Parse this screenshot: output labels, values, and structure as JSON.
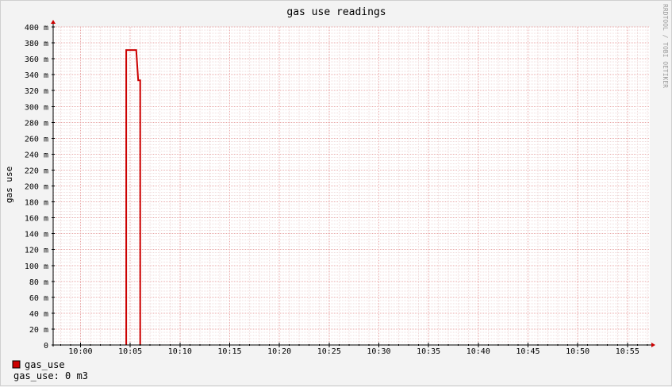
{
  "chart_data": {
    "type": "line",
    "title": "gas use readings",
    "ylabel": "gas use",
    "xlabel": "",
    "watermark": "RRDTOOL / TOBI OETIKER",
    "ylim": [
      0,
      400
    ],
    "xlim_minutes": [
      -2.75,
      57.25
    ],
    "yticks": [
      0,
      20,
      40,
      60,
      80,
      100,
      120,
      140,
      160,
      180,
      200,
      220,
      240,
      260,
      280,
      300,
      320,
      340,
      360,
      380,
      400
    ],
    "ytick_labels": [
      "0",
      "20 m",
      "40 m",
      "60 m",
      "80 m",
      "100 m",
      "120 m",
      "140 m",
      "160 m",
      "180 m",
      "200 m",
      "220 m",
      "240 m",
      "260 m",
      "280 m",
      "300 m",
      "320 m",
      "340 m",
      "360 m",
      "380 m",
      "400 m"
    ],
    "xticks": [
      "10:00",
      "10:05",
      "10:10",
      "10:15",
      "10:20",
      "10:25",
      "10:30",
      "10:35",
      "10:40",
      "10:45",
      "10:50",
      "10:55"
    ],
    "grid": true,
    "series": [
      {
        "name": "gas_use",
        "color": "#cc0000",
        "points": [
          {
            "x": "10:04.6",
            "y": 0
          },
          {
            "x": "10:04.6",
            "y": 371
          },
          {
            "x": "10:05.6",
            "y": 371
          },
          {
            "x": "10:05.8",
            "y": 333
          },
          {
            "x": "10:06.0",
            "y": 333
          },
          {
            "x": "10:06.0",
            "y": 0
          }
        ]
      }
    ],
    "legend": {
      "entries": [
        {
          "label": "gas_use",
          "color": "#cc0000"
        }
      ],
      "summary": "gas_use: 0 m3"
    }
  }
}
